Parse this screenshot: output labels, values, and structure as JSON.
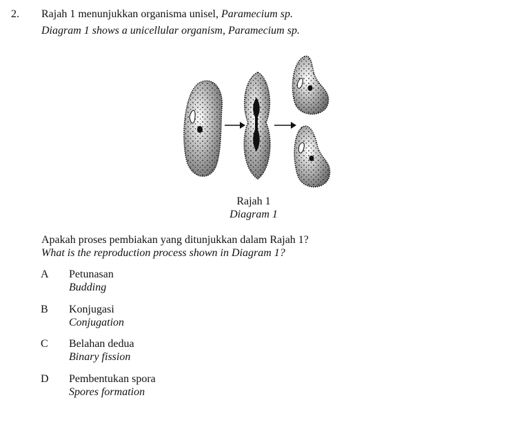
{
  "question": {
    "number": "2.",
    "stem_ms_prefix": "Rajah 1 menunjukkan organisma unisel, ",
    "stem_ms_species": "Paramecium sp.",
    "stem_en": "Diagram 1 shows a unicellular organism, Paramecium sp."
  },
  "figure": {
    "caption_ms": "Rajah 1",
    "caption_en": "Diagram 1"
  },
  "prompt": {
    "ms": "Apakah proses pembiakan yang ditunjukkan dalam Rajah 1?",
    "en": "What is the reproduction process shown in Diagram 1?"
  },
  "options": [
    {
      "letter": "A",
      "ms": "Petunasan",
      "en": "Budding"
    },
    {
      "letter": "B",
      "ms": "Konjugasi",
      "en": "Conjugation"
    },
    {
      "letter": "C",
      "ms": "Belahan dedua",
      "en": "Binary fission"
    },
    {
      "letter": "D",
      "ms": "Pembentukan spora",
      "en": "Spores formation"
    }
  ]
}
